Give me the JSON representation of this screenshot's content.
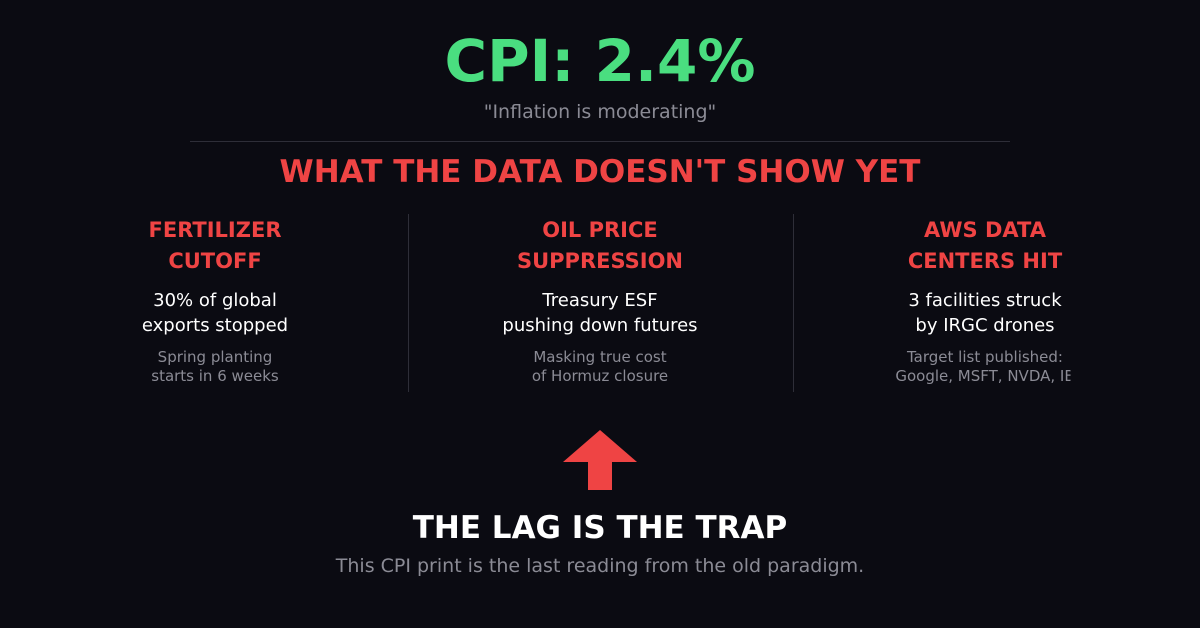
{
  "headline": "CPI: 2.4%",
  "subtitle": "\"Inflation is moderating\"",
  "section_heading": "WHAT THE DATA DOESN'T SHOW YET",
  "columns": [
    {
      "title": [
        "FERTILIZER",
        "CUTOFF"
      ],
      "body": [
        "30% of global",
        "exports stopped"
      ],
      "note": [
        "Spring planting",
        "starts in 6 weeks"
      ]
    },
    {
      "title": [
        "OIL PRICE",
        "SUPPRESSION"
      ],
      "body": [
        "Treasury ESF",
        "pushing down futures"
      ],
      "note": [
        "Masking true cost",
        "of Hormuz closure"
      ]
    },
    {
      "title": [
        "AWS DATA",
        "CENTERS HIT"
      ],
      "body": [
        "3 facilities struck",
        "by IRGC drones"
      ],
      "note": [
        "Target list published:",
        "Google, MSFT, NVDA, IB"
      ]
    }
  ],
  "footer": {
    "title": "THE LAG IS THE TRAP",
    "subtitle": "This CPI print is the last reading from the old paradigm."
  }
}
